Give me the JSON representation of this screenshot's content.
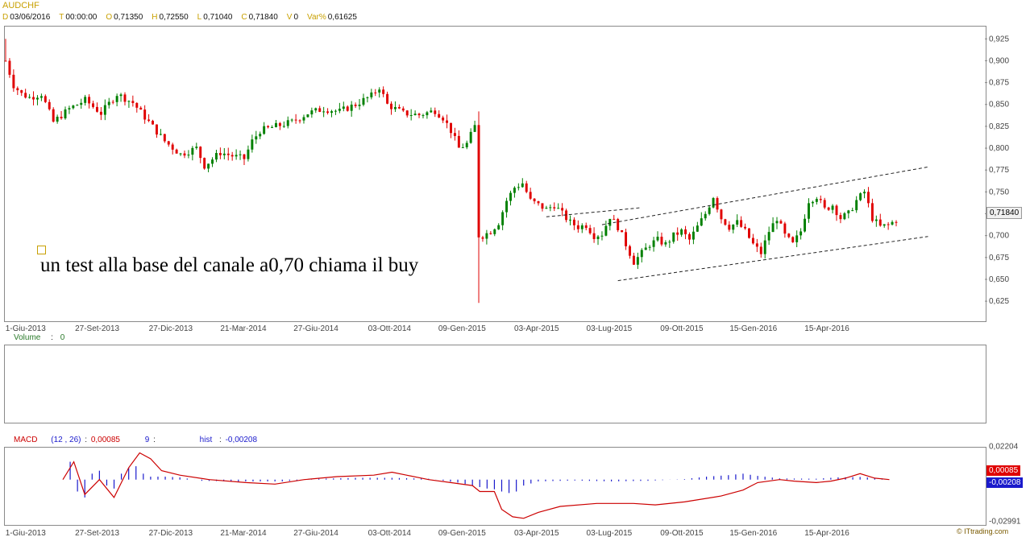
{
  "header": {
    "symbol": "AUDCHF",
    "fields": [
      {
        "k": "D",
        "v": "03/06/2016"
      },
      {
        "k": "T",
        "v": "00:00:00"
      },
      {
        "k": "O",
        "v": "0,71350"
      },
      {
        "k": "H",
        "v": "0,72550"
      },
      {
        "k": "L",
        "v": "0,71040"
      },
      {
        "k": "C",
        "v": "0,71840"
      },
      {
        "k": "V",
        "v": "0"
      },
      {
        "k": "Var%",
        "v": "0,61625"
      }
    ]
  },
  "annotation": {
    "text": "un test alla base del canale a0,70 chiama il buy"
  },
  "volume": {
    "label": "Volume",
    "sep": ":",
    "value": "0"
  },
  "macd": {
    "label": "MACD",
    "params": "(12 , 26)",
    "sep": ":",
    "value": "0,00085",
    "signal_param": "9",
    "signal_sep": ":",
    "hist_label": "hist",
    "hist_sep": ":",
    "hist_value": "-0,00208",
    "yticks": [
      "0,02204",
      "-0,02991"
    ],
    "tag_macd": "0,00085",
    "tag_hist": "-0,00208"
  },
  "watermark": "© ITtrading.com",
  "colors": {
    "up": "#008000",
    "down": "#e00000",
    "macd_line": "#cc0000",
    "hist": "#1a1acc",
    "header_key": "#c8a000"
  },
  "chart_data": [
    {
      "type": "candlestick",
      "title": "AUDCHF",
      "x_tick_labels": [
        "1-Giu-2013",
        "27-Set-2013",
        "27-Dic-2013",
        "21-Mar-2014",
        "27-Giu-2014",
        "03-Ott-2014",
        "09-Gen-2015",
        "03-Apr-2015",
        "03-Lug-2015",
        "09-Ott-2015",
        "15-Gen-2016",
        "15-Apr-2016"
      ],
      "y_tick_labels": [
        "0,925",
        "0,900",
        "0,875",
        "0,850",
        "0,825",
        "0,800",
        "0,775",
        "0,750",
        "0,725",
        "0,700",
        "0,675",
        "0,650",
        "0,625"
      ],
      "ylim": [
        0.603,
        0.94
      ],
      "last_price_label": "0,71840",
      "close_path": [
        [
          0,
          0.9
        ],
        [
          2,
          0.872
        ],
        [
          4,
          0.862
        ],
        [
          6,
          0.858
        ],
        [
          9,
          0.862
        ],
        [
          12,
          0.83
        ],
        [
          16,
          0.845
        ],
        [
          20,
          0.855
        ],
        [
          24,
          0.84
        ],
        [
          28,
          0.862
        ],
        [
          32,
          0.852
        ],
        [
          36,
          0.83
        ],
        [
          40,
          0.808
        ],
        [
          44,
          0.793
        ],
        [
          48,
          0.8
        ],
        [
          50,
          0.78
        ],
        [
          54,
          0.795
        ],
        [
          58,
          0.79
        ],
        [
          60,
          0.788
        ],
        [
          62,
          0.808
        ],
        [
          64,
          0.82
        ],
        [
          68,
          0.825
        ],
        [
          72,
          0.83
        ],
        [
          76,
          0.84
        ],
        [
          80,
          0.845
        ],
        [
          84,
          0.842
        ],
        [
          88,
          0.85
        ],
        [
          92,
          0.86
        ],
        [
          94,
          0.87
        ],
        [
          96,
          0.85
        ],
        [
          100,
          0.84
        ],
        [
          104,
          0.838
        ],
        [
          108,
          0.843
        ],
        [
          110,
          0.835
        ],
        [
          112,
          0.82
        ],
        [
          114,
          0.8
        ],
        [
          116,
          0.805
        ],
        [
          118,
          0.825
        ],
        [
          118.3,
          0.83
        ],
        [
          118.6,
          0.7
        ],
        [
          120,
          0.7
        ],
        [
          122,
          0.705
        ],
        [
          124,
          0.715
        ],
        [
          126,
          0.74
        ],
        [
          128,
          0.755
        ],
        [
          130,
          0.76
        ],
        [
          132,
          0.74
        ],
        [
          134,
          0.735
        ],
        [
          136,
          0.73
        ],
        [
          138,
          0.735
        ],
        [
          140,
          0.725
        ],
        [
          142,
          0.715
        ],
        [
          144,
          0.71
        ],
        [
          146,
          0.712
        ],
        [
          148,
          0.7
        ],
        [
          150,
          0.702
        ],
        [
          152,
          0.722
        ],
        [
          154,
          0.71
        ],
        [
          156,
          0.69
        ],
        [
          158,
          0.67
        ],
        [
          160,
          0.68
        ],
        [
          162,
          0.69
        ],
        [
          164,
          0.695
        ],
        [
          166,
          0.69
        ],
        [
          168,
          0.7
        ],
        [
          170,
          0.705
        ],
        [
          172,
          0.695
        ],
        [
          174,
          0.71
        ],
        [
          176,
          0.725
        ],
        [
          178,
          0.745
        ],
        [
          180,
          0.72
        ],
        [
          182,
          0.71
        ],
        [
          184,
          0.715
        ],
        [
          186,
          0.705
        ],
        [
          188,
          0.69
        ],
        [
          190,
          0.68
        ],
        [
          192,
          0.705
        ],
        [
          194,
          0.72
        ],
        [
          196,
          0.7
        ],
        [
          198,
          0.69
        ],
        [
          200,
          0.705
        ],
        [
          202,
          0.74
        ],
        [
          204,
          0.745
        ],
        [
          206,
          0.73
        ],
        [
          208,
          0.735
        ],
        [
          210,
          0.72
        ],
        [
          212,
          0.725
        ],
        [
          214,
          0.74
        ],
        [
          216,
          0.75
        ],
        [
          218,
          0.72
        ],
        [
          220,
          0.71
        ],
        [
          222,
          0.712
        ],
        [
          224,
          0.718
        ]
      ],
      "bar_count": 225,
      "trendlines": [
        {
          "from": [
            150,
            0.7125
          ],
          "to": [
            232,
            0.7785
          ]
        },
        {
          "from": [
            154,
            0.6485
          ],
          "to": [
            232,
            0.699
          ]
        },
        {
          "from": [
            136,
            0.7215
          ],
          "to": [
            160,
            0.732
          ]
        }
      ]
    },
    {
      "type": "bar",
      "title": "Volume",
      "x_tick_labels": [
        "1-Giu-2013",
        "27-Set-2013",
        "27-Dic-2013",
        "21-Mar-2014",
        "27-Giu-2014",
        "03-Ott-2014",
        "09-Gen-2015",
        "03-Apr-2015",
        "03-Lug-2015",
        "09-Ott-2015",
        "15-Gen-2016",
        "15-Apr-2016"
      ],
      "values_all": 0
    },
    {
      "type": "line",
      "title": "MACD",
      "x_tick_labels": [
        "1-Giu-2013",
        "27-Set-2013",
        "27-Dic-2013",
        "21-Mar-2014",
        "27-Giu-2014",
        "03-Ott-2014",
        "09-Gen-2015",
        "03-Apr-2015",
        "03-Lug-2015",
        "09-Ott-2015",
        "15-Gen-2016",
        "15-Apr-2016"
      ],
      "ylim": [
        -0.02991,
        0.02204
      ],
      "macd": [
        [
          0,
          0.0
        ],
        [
          3,
          0.012
        ],
        [
          6,
          -0.01
        ],
        [
          10,
          0.0
        ],
        [
          14,
          -0.012
        ],
        [
          18,
          0.008
        ],
        [
          21,
          0.018
        ],
        [
          24,
          0.014
        ],
        [
          27,
          0.006
        ],
        [
          32,
          0.003
        ],
        [
          40,
          0.0
        ],
        [
          50,
          -0.002
        ],
        [
          58,
          -0.003
        ],
        [
          66,
          0.0
        ],
        [
          75,
          0.002
        ],
        [
          85,
          0.003
        ],
        [
          90,
          0.005
        ],
        [
          94,
          0.003
        ],
        [
          100,
          0.0
        ],
        [
          106,
          -0.002
        ],
        [
          112,
          -0.004
        ],
        [
          114,
          -0.008
        ],
        [
          118,
          -0.008
        ],
        [
          120,
          -0.02
        ],
        [
          123,
          -0.025
        ],
        [
          126,
          -0.026
        ],
        [
          130,
          -0.022
        ],
        [
          136,
          -0.018
        ],
        [
          146,
          -0.016
        ],
        [
          156,
          -0.016
        ],
        [
          162,
          -0.017
        ],
        [
          170,
          -0.015
        ],
        [
          180,
          -0.011
        ],
        [
          186,
          -0.007
        ],
        [
          190,
          -0.002
        ],
        [
          196,
          0.0
        ],
        [
          200,
          -0.001
        ],
        [
          206,
          -0.002
        ],
        [
          210,
          -0.001
        ],
        [
          214,
          0.001
        ],
        [
          218,
          0.004
        ],
        [
          222,
          0.001
        ],
        [
          226,
          0.0
        ]
      ],
      "hist": [
        [
          2,
          0.012
        ],
        [
          4,
          -0.008
        ],
        [
          6,
          -0.012
        ],
        [
          8,
          0.004
        ],
        [
          10,
          0.006
        ],
        [
          12,
          -0.004
        ],
        [
          14,
          -0.006
        ],
        [
          16,
          0.004
        ],
        [
          18,
          0.008
        ],
        [
          20,
          0.009
        ],
        [
          22,
          0.004
        ],
        [
          24,
          0.002
        ],
        [
          28,
          0.002
        ],
        [
          32,
          0.0015
        ],
        [
          38,
          -0.0008
        ],
        [
          48,
          -0.0012
        ],
        [
          60,
          -0.0012
        ],
        [
          70,
          0.0006
        ],
        [
          80,
          0.0012
        ],
        [
          90,
          0.0012
        ],
        [
          100,
          0.0006
        ],
        [
          108,
          -0.002
        ],
        [
          112,
          -0.004
        ],
        [
          116,
          -0.006
        ],
        [
          118,
          -0.0065
        ],
        [
          120,
          -0.008
        ],
        [
          122,
          -0.009
        ],
        [
          124,
          -0.008
        ],
        [
          126,
          -0.004
        ],
        [
          130,
          -0.0012
        ],
        [
          140,
          -0.0006
        ],
        [
          150,
          -0.0012
        ],
        [
          160,
          -0.0008
        ],
        [
          170,
          0.0004
        ],
        [
          176,
          0.002
        ],
        [
          182,
          0.003
        ],
        [
          186,
          0.004
        ],
        [
          190,
          0.0025
        ],
        [
          196,
          0.0008
        ],
        [
          206,
          0.0006
        ],
        [
          212,
          0.0015
        ],
        [
          218,
          0.0018
        ],
        [
          224,
          0.0008
        ],
        [
          227,
          -0.0004
        ]
      ],
      "last_macd_label": "0,00085",
      "last_hist_label": "-0,00208"
    }
  ]
}
